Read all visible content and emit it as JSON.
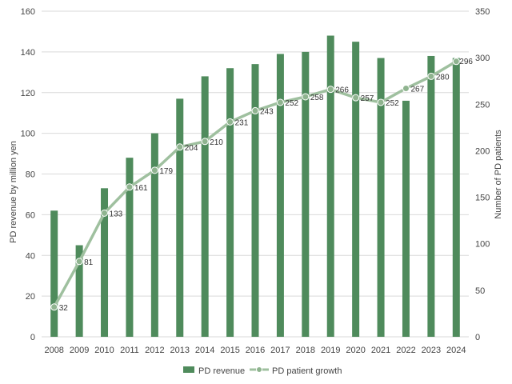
{
  "chart_data": {
    "type": "bar+line",
    "categories": [
      "2008",
      "2009",
      "2010",
      "2011",
      "2012",
      "2013",
      "2014",
      "2015",
      "2016",
      "2017",
      "2018",
      "2019",
      "2020",
      "2021",
      "2022",
      "2023",
      "2024"
    ],
    "series": [
      {
        "name": "PD revenue",
        "type": "bar",
        "axis": "left",
        "values": [
          62,
          45,
          73,
          88,
          100,
          117,
          128,
          132,
          134,
          139,
          140,
          148,
          145,
          137,
          116,
          138,
          137
        ]
      },
      {
        "name": "PD patient growth",
        "type": "line",
        "axis": "right",
        "values": [
          32,
          81,
          133,
          161,
          179,
          204,
          210,
          231,
          243,
          252,
          258,
          266,
          257,
          252,
          267,
          280,
          296
        ],
        "labels": [
          "32",
          "81",
          "133",
          "161",
          "179",
          "204",
          "210",
          "231",
          "243",
          "252",
          "258",
          "266",
          "257",
          "252",
          "267",
          "280",
          "296"
        ]
      }
    ],
    "ylabel": "PD revenue by million yen",
    "y2label": "Number of PD patients",
    "ylim": [
      0,
      160
    ],
    "y2lim": [
      0,
      350
    ],
    "yticks": [
      "0",
      "20",
      "40",
      "60",
      "80",
      "100",
      "120",
      "140",
      "160"
    ],
    "y2ticks": [
      "0",
      "50",
      "100",
      "150",
      "200",
      "250",
      "300",
      "350"
    ],
    "grid": true,
    "legend": "bottom",
    "colors": {
      "bar": "#4f8b5c",
      "line": "#9fc09f",
      "marker": "#8fb48f"
    }
  }
}
